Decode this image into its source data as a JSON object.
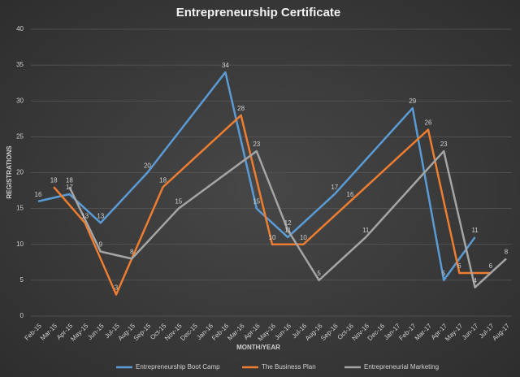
{
  "chart_data": {
    "type": "line",
    "title": "Entrepreneurship Certificate",
    "x_label": "MONTH/YEAR",
    "y_label": "REGISTRATIONS",
    "categories": [
      "Feb-15",
      "Mar-15",
      "Apr-15",
      "May-15",
      "Jun-15",
      "Jul-15",
      "Aug-15",
      "Sep-15",
      "Oct-15",
      "Nov-15",
      "Dec-15",
      "Jan-16",
      "Feb-16",
      "Mar-16",
      "Apr-16",
      "May-16",
      "Jun-16",
      "Jul-16",
      "Aug-16",
      "Sep-16",
      "Oct-16",
      "Nov-16",
      "Dec-16",
      "Jan-17",
      "Feb-17",
      "Mar-17",
      "Apr-17",
      "May-17",
      "Jun-17",
      "Jul-17",
      "Aug-17"
    ],
    "ylim": [
      0,
      40
    ],
    "yticks": [
      0,
      5,
      10,
      15,
      20,
      25,
      30,
      35,
      40
    ],
    "grid": true,
    "legend": "bottom",
    "series": [
      {
        "name": "Entrepreneurship Boot Camp",
        "color": "#5b9bd5",
        "values": [
          16,
          16.5,
          17,
          15,
          13,
          15.33,
          17.67,
          20,
          22.8,
          25.6,
          28.4,
          31.2,
          34,
          24.5,
          15,
          13,
          11,
          13,
          15,
          17,
          19.4,
          21.8,
          24.2,
          26.6,
          29,
          17,
          5,
          8,
          11,
          null,
          null
        ],
        "value_labels": [
          "16",
          null,
          "17",
          null,
          "13",
          null,
          null,
          "20",
          null,
          null,
          null,
          null,
          "34",
          null,
          "15",
          null,
          "11",
          null,
          null,
          "17",
          null,
          null,
          null,
          null,
          "29",
          null,
          "5",
          null,
          "11",
          null,
          null
        ]
      },
      {
        "name": "The Business Plan",
        "color": "#ed7d31",
        "values": [
          null,
          18,
          15.5,
          13,
          8,
          3,
          8,
          13,
          18,
          20,
          22,
          24,
          26,
          28,
          19,
          10,
          10,
          10,
          12,
          14,
          16,
          18,
          20,
          22,
          24,
          26,
          16,
          6,
          6,
          6,
          null
        ],
        "value_labels": [
          null,
          "18",
          null,
          "13",
          null,
          "3",
          null,
          null,
          "18",
          null,
          null,
          null,
          null,
          "28",
          null,
          "10",
          null,
          "10",
          null,
          null,
          "16",
          null,
          null,
          null,
          null,
          "26",
          null,
          "6",
          null,
          "6",
          null
        ]
      },
      {
        "name": "Entrepreneurial Marketing",
        "color": "#a5a5a5",
        "values": [
          null,
          null,
          18,
          13.5,
          9,
          8.5,
          8,
          10.33,
          12.67,
          15,
          16.6,
          18.2,
          19.8,
          21.4,
          23,
          17.5,
          12,
          8.5,
          5,
          7,
          9,
          11,
          13.4,
          15.8,
          18.2,
          20.6,
          23,
          13.5,
          4,
          6,
          8
        ],
        "value_labels": [
          null,
          null,
          "18",
          null,
          "9",
          null,
          "8",
          null,
          null,
          "15",
          null,
          null,
          null,
          null,
          "23",
          null,
          "12",
          null,
          "5",
          null,
          null,
          "11",
          null,
          null,
          null,
          null,
          "23",
          null,
          "4",
          null,
          "8"
        ]
      }
    ]
  }
}
